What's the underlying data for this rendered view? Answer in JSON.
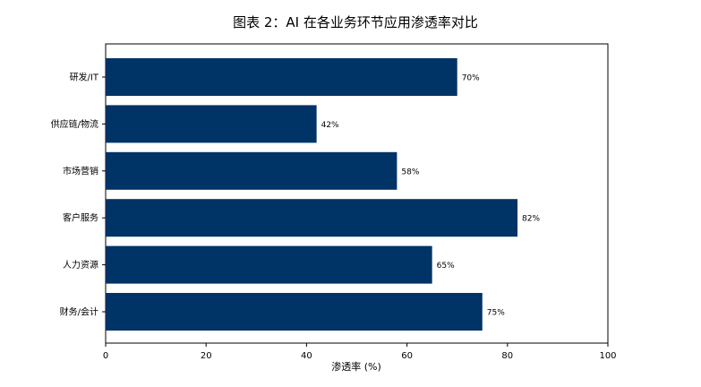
{
  "chart_data": {
    "type": "bar",
    "orientation": "horizontal",
    "title": "图表 2：AI 在各业务环节应用渗透率对比",
    "xlabel": "渗透率 (%)",
    "ylabel": "",
    "categories": [
      "研发/IT",
      "供应链/物流",
      "市场营销",
      "客户服务",
      "人力资源",
      "财务/会计"
    ],
    "values": [
      70,
      42,
      58,
      82,
      65,
      75
    ],
    "data_labels": [
      "70%",
      "42%",
      "58%",
      "82%",
      "65%",
      "75%"
    ],
    "xlim": [
      0,
      100
    ],
    "x_ticks": [
      0,
      20,
      40,
      60,
      80,
      100
    ],
    "x_tick_labels": [
      "0",
      "20",
      "40",
      "60",
      "80",
      "100"
    ],
    "grid": false,
    "bar_color": "#003366"
  }
}
